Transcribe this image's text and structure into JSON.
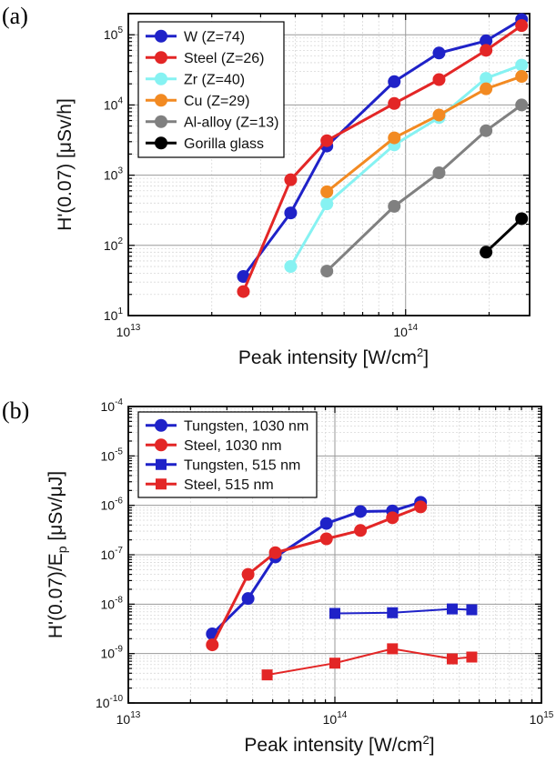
{
  "chart_data": [
    {
      "panel": "(a)",
      "type": "line",
      "xscale": "log",
      "yscale": "log",
      "xlim": [
        10000000000000.0,
        280000000000000.0
      ],
      "ylim": [
        10,
        200000
      ],
      "xticks": [
        10000000000000.0,
        100000000000000.0
      ],
      "xtick_labels": [
        [
          "10",
          "13"
        ],
        [
          "10",
          "14"
        ]
      ],
      "yticks": [
        10,
        100,
        1000,
        10000,
        100000
      ],
      "ytick_labels": [
        [
          "10",
          "1"
        ],
        [
          "10",
          "2"
        ],
        [
          "10",
          "3"
        ],
        [
          "10",
          "4"
        ],
        [
          "10",
          "5"
        ]
      ],
      "xlabel": {
        "main": "Peak intensity [W/cm",
        "sup": "2",
        "tail": "]"
      },
      "ylabel": {
        "main": "H'(0.07) [μSv/h]",
        "sub": "",
        "tail": ""
      },
      "grid": true,
      "legend": "top-left",
      "series": [
        {
          "name": "W (Z=74)",
          "color": "#1f22c8",
          "marker": "circle",
          "x": [
            26000000000000.0,
            38500000000000.0,
            52000000000000.0,
            91000000000000.0,
            132000000000000.0,
            195000000000000.0,
            262000000000000.0
          ],
          "y": [
            36,
            290,
            2600,
            21500,
            55000,
            82000,
            165000
          ]
        },
        {
          "name": "Steel (Z=26)",
          "color": "#e32626",
          "marker": "circle",
          "x": [
            26000000000000.0,
            38500000000000.0,
            52000000000000.0,
            91000000000000.0,
            132000000000000.0,
            195000000000000.0,
            262000000000000.0
          ],
          "y": [
            22,
            860,
            3100,
            10500,
            23000,
            60000,
            135000
          ]
        },
        {
          "name": "Zr (Z=40)",
          "color": "#86f2f2",
          "marker": "circle",
          "x": [
            38500000000000.0,
            52000000000000.0,
            91000000000000.0,
            132000000000000.0,
            195000000000000.0,
            262000000000000.0
          ],
          "y": [
            50,
            390,
            2700,
            6600,
            24000,
            37000
          ]
        },
        {
          "name": "Cu (Z=29)",
          "color": "#f28a22",
          "marker": "circle",
          "x": [
            52000000000000.0,
            91000000000000.0,
            132000000000000.0,
            195000000000000.0,
            262000000000000.0
          ],
          "y": [
            580,
            3400,
            7200,
            17000,
            25500
          ]
        },
        {
          "name": "Al-alloy (Z=13)",
          "color": "#808080",
          "marker": "circle",
          "x": [
            52000000000000.0,
            91000000000000.0,
            132000000000000.0,
            195000000000000.0,
            262000000000000.0
          ],
          "y": [
            43,
            360,
            1080,
            4300,
            10000
          ]
        },
        {
          "name": "Gorilla glass",
          "color": "#000000",
          "marker": "circle",
          "x": [
            195000000000000.0,
            262000000000000.0
          ],
          "y": [
            80,
            240
          ]
        }
      ]
    },
    {
      "panel": "(b)",
      "type": "line",
      "xscale": "log",
      "yscale": "log",
      "xlim": [
        10000000000000.0,
        1000000000000000.0
      ],
      "ylim": [
        1e-10,
        0.0001
      ],
      "xticks": [
        10000000000000.0,
        100000000000000.0,
        1000000000000000.0
      ],
      "xtick_labels": [
        [
          "10",
          "13"
        ],
        [
          "10",
          "14"
        ],
        [
          "10",
          "15"
        ]
      ],
      "yticks": [
        1e-10,
        1e-09,
        1e-08,
        1e-07,
        1e-06,
        1e-05,
        0.0001
      ],
      "ytick_labels": [
        [
          "10",
          "-10"
        ],
        [
          "10",
          "-9"
        ],
        [
          "10",
          "-8"
        ],
        [
          "10",
          "-7"
        ],
        [
          "10",
          "-6"
        ],
        [
          "10",
          "-5"
        ],
        [
          "10",
          "-4"
        ]
      ],
      "xlabel": {
        "main": "Peak intensity [W/cm",
        "sup": "2",
        "tail": "]"
      },
      "ylabel": {
        "main": "H'(0.07)/E",
        "sub": "p",
        "tail": " [μSv/μJ]"
      },
      "grid": true,
      "legend": "top-left",
      "series": [
        {
          "name": "Tungsten, 1030 nm",
          "color": "#1f22c8",
          "marker": "circle",
          "x": [
            25500000000000.0,
            38000000000000.0,
            51500000000000.0,
            91000000000000.0,
            133000000000000.0,
            190000000000000.0,
            260000000000000.0
          ],
          "y": [
            2.5e-09,
            1.3e-08,
            9e-08,
            4.3e-07,
            7.5e-07,
            7.7e-07,
            1.15e-06
          ]
        },
        {
          "name": "Steel, 1030 nm",
          "color": "#e32626",
          "marker": "circle",
          "x": [
            25500000000000.0,
            38000000000000.0,
            51500000000000.0,
            91000000000000.0,
            133000000000000.0,
            190000000000000.0,
            260000000000000.0
          ],
          "y": [
            1.5e-09,
            4e-08,
            1.1e-07,
            2.1e-07,
            3.1e-07,
            5.6e-07,
            9.3e-07
          ]
        },
        {
          "name": "Tungsten, 515 nm",
          "color": "#1f22c8",
          "marker": "square",
          "x": [
            100000000000000.0,
            190000000000000.0,
            370000000000000.0,
            460000000000000.0
          ],
          "y": [
            6.5e-09,
            6.7e-09,
            8e-09,
            7.7e-09
          ]
        },
        {
          "name": "Steel, 515 nm",
          "color": "#e32626",
          "marker": "square",
          "x": [
            47000000000000.0,
            100000000000000.0,
            190000000000000.0,
            370000000000000.0,
            460000000000000.0
          ],
          "y": [
            3.7e-10,
            6.4e-10,
            1.25e-09,
            7.8e-10,
            8.5e-10
          ]
        }
      ]
    }
  ]
}
